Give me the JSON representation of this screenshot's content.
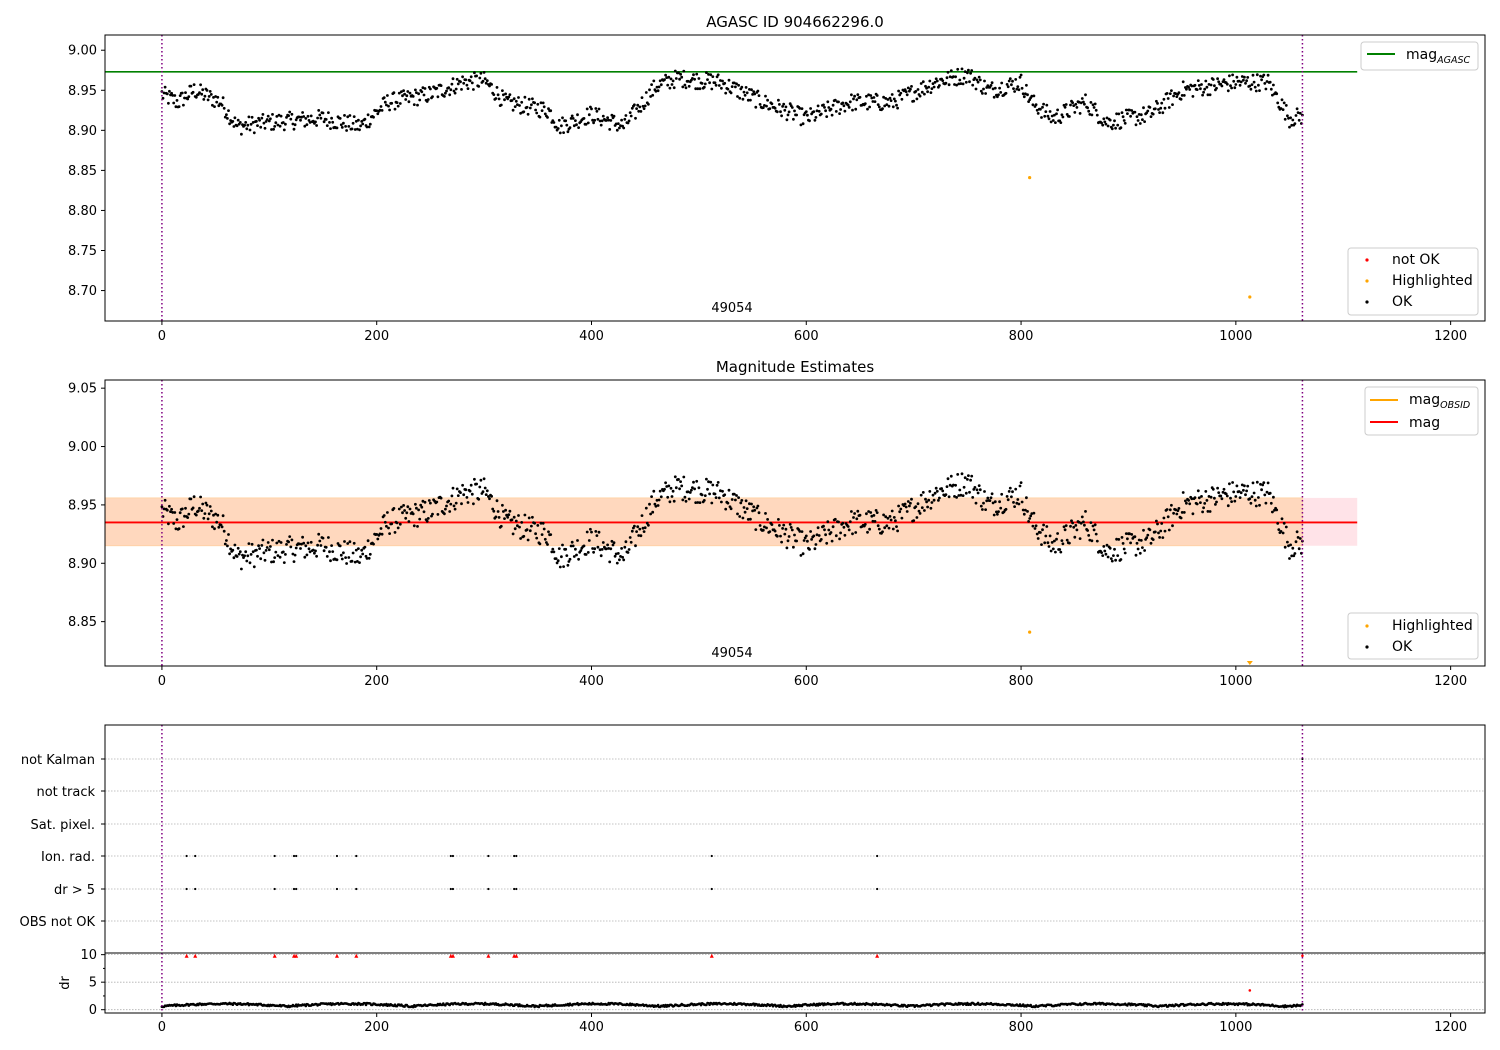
{
  "chart_data": [
    {
      "type": "scatter",
      "title": "AGASC ID 904662296.0",
      "xlim": [
        -53,
        1232
      ],
      "ylim": [
        8.662,
        9.019
      ],
      "xticks": [
        0,
        200,
        400,
        600,
        800,
        1000,
        1200
      ],
      "yticks": [
        8.7,
        8.75,
        8.8,
        8.85,
        8.9,
        8.95,
        9.0
      ],
      "ytick_labels": [
        "8.70",
        "8.75",
        "8.80",
        "8.85",
        "8.90",
        "8.95",
        "9.00"
      ],
      "hline": {
        "y": 8.973,
        "x_end": 1113,
        "color": "#008000"
      },
      "vlines": [
        0,
        1062
      ],
      "annotation": {
        "text": "49054",
        "x": 531,
        "y": 8.675
      },
      "highlighted_points": [
        {
          "x": 808,
          "y": 8.841
        },
        {
          "x": 1013,
          "y": 8.692
        }
      ],
      "legend_lines": [
        {
          "label": "mag",
          "sub": "AGASC",
          "color": "#008000"
        }
      ],
      "legend_points": [
        {
          "label": "not OK",
          "color": "#ff0000"
        },
        {
          "label": "Highlighted",
          "color": "#ffa500"
        },
        {
          "label": "OK",
          "color": "#000000"
        }
      ]
    },
    {
      "type": "scatter",
      "title": "Magnitude Estimates",
      "xlim": [
        -53,
        1232
      ],
      "ylim": [
        8.812,
        9.057
      ],
      "xticks": [
        0,
        200,
        400,
        600,
        800,
        1000,
        1200
      ],
      "yticks": [
        8.85,
        8.9,
        8.95,
        9.0,
        9.05
      ],
      "ytick_labels": [
        "8.85",
        "8.90",
        "8.95",
        "9.00",
        "9.05"
      ],
      "mag_line": {
        "y": 8.935,
        "x_end": 1113,
        "color": "#ff0000"
      },
      "mag_band": {
        "lo": 8.915,
        "hi": 8.956
      },
      "vlines": [
        0,
        1062
      ],
      "annotation": {
        "text": "49054",
        "x": 531,
        "y": 8.826
      },
      "highlighted_points": [
        {
          "x": 808,
          "y": 8.841
        }
      ],
      "offscale_marker": {
        "x": 1013
      },
      "legend_lines": [
        {
          "label": "mag",
          "sub": "OBSID",
          "color": "#ffa500"
        },
        {
          "label": "mag",
          "sub": "",
          "color": "#ff0000"
        }
      ],
      "legend_points": [
        {
          "label": "Highlighted",
          "color": "#ffa500"
        },
        {
          "label": "OK",
          "color": "#000000"
        }
      ]
    },
    {
      "type": "scatter",
      "xlim": [
        -53,
        1232
      ],
      "flag_rows": [
        "not Kalman",
        "not track",
        "Sat. pixel.",
        "Ion. rad.",
        "dr > 5",
        "OBS not OK"
      ],
      "flag_times": [
        23,
        31,
        105,
        123,
        125,
        163,
        181,
        269,
        271,
        304,
        328,
        330,
        512,
        666
      ],
      "kalman_flag_times": [
        1062
      ],
      "dr_axis": {
        "ylabel": "dr",
        "yticks": [
          0,
          5,
          10
        ],
        "ylim": [
          -0.6,
          10.3
        ]
      },
      "dr_red_points": [
        {
          "x": 1013,
          "y": 3.5
        }
      ],
      "vlines": [
        0,
        1062
      ],
      "xticks": [
        0,
        200,
        400,
        600,
        800,
        1000,
        1200
      ]
    }
  ]
}
